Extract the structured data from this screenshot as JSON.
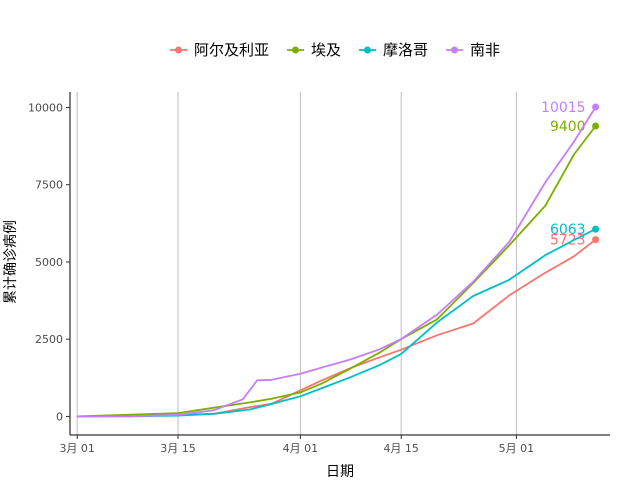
{
  "chart_data": {
    "type": "line",
    "xlabel": "日期",
    "ylabel": "累计确诊病例",
    "x_ticks": [
      {
        "date": "2020-03-01",
        "label": "3月 01"
      },
      {
        "date": "2020-03-15",
        "label": "3月 15"
      },
      {
        "date": "2020-04-01",
        "label": "4月 01"
      },
      {
        "date": "2020-04-15",
        "label": "4月 15"
      },
      {
        "date": "2020-05-01",
        "label": "5月 01"
      }
    ],
    "xlim": [
      "2020-02-29",
      "2020-05-14"
    ],
    "y_ticks": [
      0,
      2500,
      5000,
      7500,
      10000
    ],
    "ylim": [
      -600,
      10500
    ],
    "grid": "vertical",
    "legend_position": "top",
    "series": [
      {
        "name": "阿尔及利亚",
        "color": "#F8766D",
        "end_label": "5723",
        "points": [
          [
            "2020-03-01",
            1
          ],
          [
            "2020-03-08",
            17
          ],
          [
            "2020-03-15",
            48
          ],
          [
            "2020-03-20",
            90
          ],
          [
            "2020-03-25",
            302
          ],
          [
            "2020-03-28",
            409
          ],
          [
            "2020-04-01",
            847
          ],
          [
            "2020-04-04",
            1171
          ],
          [
            "2020-04-08",
            1572
          ],
          [
            "2020-04-12",
            1914
          ],
          [
            "2020-04-15",
            2160
          ],
          [
            "2020-04-20",
            2629
          ],
          [
            "2020-04-25",
            3007
          ],
          [
            "2020-04-30",
            3917
          ],
          [
            "2020-05-05",
            4648
          ],
          [
            "2020-05-09",
            5182
          ],
          [
            "2020-05-12",
            5723
          ]
        ]
      },
      {
        "name": "埃及",
        "color": "#7CAE00",
        "end_label": "9400",
        "points": [
          [
            "2020-03-01",
            2
          ],
          [
            "2020-03-08",
            55
          ],
          [
            "2020-03-15",
            110
          ],
          [
            "2020-03-20",
            285
          ],
          [
            "2020-03-25",
            456
          ],
          [
            "2020-03-28",
            576
          ],
          [
            "2020-04-01",
            779
          ],
          [
            "2020-04-04",
            1070
          ],
          [
            "2020-04-08",
            1560
          ],
          [
            "2020-04-12",
            2065
          ],
          [
            "2020-04-15",
            2505
          ],
          [
            "2020-04-20",
            3144
          ],
          [
            "2020-04-25",
            4319
          ],
          [
            "2020-04-30",
            5537
          ],
          [
            "2020-05-05",
            6813
          ],
          [
            "2020-05-09",
            8476
          ],
          [
            "2020-05-12",
            9400
          ]
        ]
      },
      {
        "name": "摩洛哥",
        "color": "#00BFC4",
        "end_label": "6063",
        "points": [
          [
            "2020-03-01",
            0
          ],
          [
            "2020-03-08",
            2
          ],
          [
            "2020-03-15",
            28
          ],
          [
            "2020-03-20",
            86
          ],
          [
            "2020-03-25",
            225
          ],
          [
            "2020-03-28",
            402
          ],
          [
            "2020-04-01",
            654
          ],
          [
            "2020-04-04",
            919
          ],
          [
            "2020-04-08",
            1275
          ],
          [
            "2020-04-12",
            1661
          ],
          [
            "2020-04-15",
            2024
          ],
          [
            "2020-04-20",
            3046
          ],
          [
            "2020-04-25",
            3897
          ],
          [
            "2020-04-30",
            4423
          ],
          [
            "2020-05-05",
            5219
          ],
          [
            "2020-05-09",
            5711
          ],
          [
            "2020-05-12",
            6063
          ]
        ]
      },
      {
        "name": "南非",
        "color": "#C77CFF",
        "end_label": "10015",
        "points": [
          [
            "2020-03-01",
            0
          ],
          [
            "2020-03-08",
            3
          ],
          [
            "2020-03-15",
            51
          ],
          [
            "2020-03-20",
            202
          ],
          [
            "2020-03-24",
            554
          ],
          [
            "2020-03-26",
            1170
          ],
          [
            "2020-03-28",
            1187
          ],
          [
            "2020-04-01",
            1380
          ],
          [
            "2020-04-04",
            1585
          ],
          [
            "2020-04-08",
            1845
          ],
          [
            "2020-04-12",
            2173
          ],
          [
            "2020-04-15",
            2506
          ],
          [
            "2020-04-20",
            3300
          ],
          [
            "2020-04-25",
            4361
          ],
          [
            "2020-04-30",
            5647
          ],
          [
            "2020-05-05",
            7572
          ],
          [
            "2020-05-09",
            8895
          ],
          [
            "2020-05-12",
            10015
          ]
        ]
      }
    ]
  }
}
